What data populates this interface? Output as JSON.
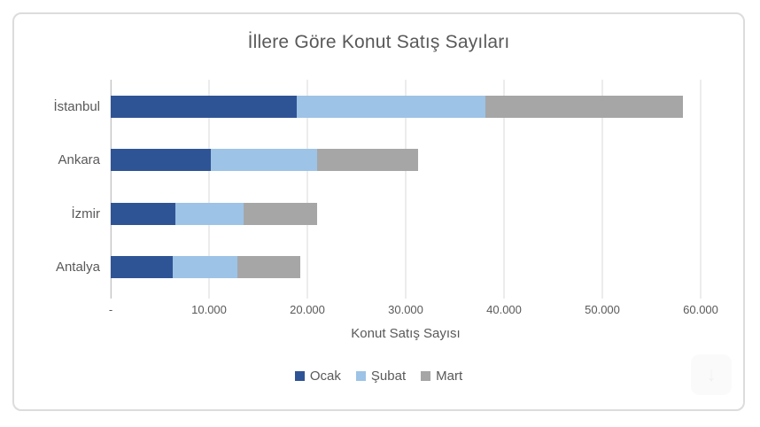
{
  "chart_data": {
    "type": "bar",
    "orientation": "horizontal-stacked",
    "title": "İllere Göre Konut Satış Sayıları",
    "xlabel": "Konut Satış Sayısı",
    "categories": [
      "İstanbul",
      "Ankara",
      "İzmir",
      "Antalya"
    ],
    "series": [
      {
        "name": "Ocak",
        "color": "#2F5496",
        "values": [
          18900,
          10200,
          6600,
          6300
        ]
      },
      {
        "name": "Şubat",
        "color": "#9DC3E6",
        "values": [
          19200,
          10800,
          6900,
          6600
        ]
      },
      {
        "name": "Mart",
        "color": "#A6A6A6",
        "values": [
          20100,
          10300,
          7500,
          6400
        ]
      }
    ],
    "xlim": [
      0,
      60000
    ],
    "xticks": [
      {
        "value": 0,
        "label": "-"
      },
      {
        "value": 10000,
        "label": "10.000"
      },
      {
        "value": 20000,
        "label": "20.000"
      },
      {
        "value": 30000,
        "label": "30.000"
      },
      {
        "value": 40000,
        "label": "40.000"
      },
      {
        "value": 50000,
        "label": "50.000"
      },
      {
        "value": 60000,
        "label": "60.000"
      }
    ],
    "grid": true,
    "legend_position": "bottom"
  },
  "icons": {
    "ghost_download_glyph": "↓"
  },
  "colors": {
    "text": "#595959",
    "gridline": "#d9d9d9",
    "axis_line": "#c3c3c3",
    "frame_border": "#dcdcdc",
    "background": "#ffffff"
  }
}
